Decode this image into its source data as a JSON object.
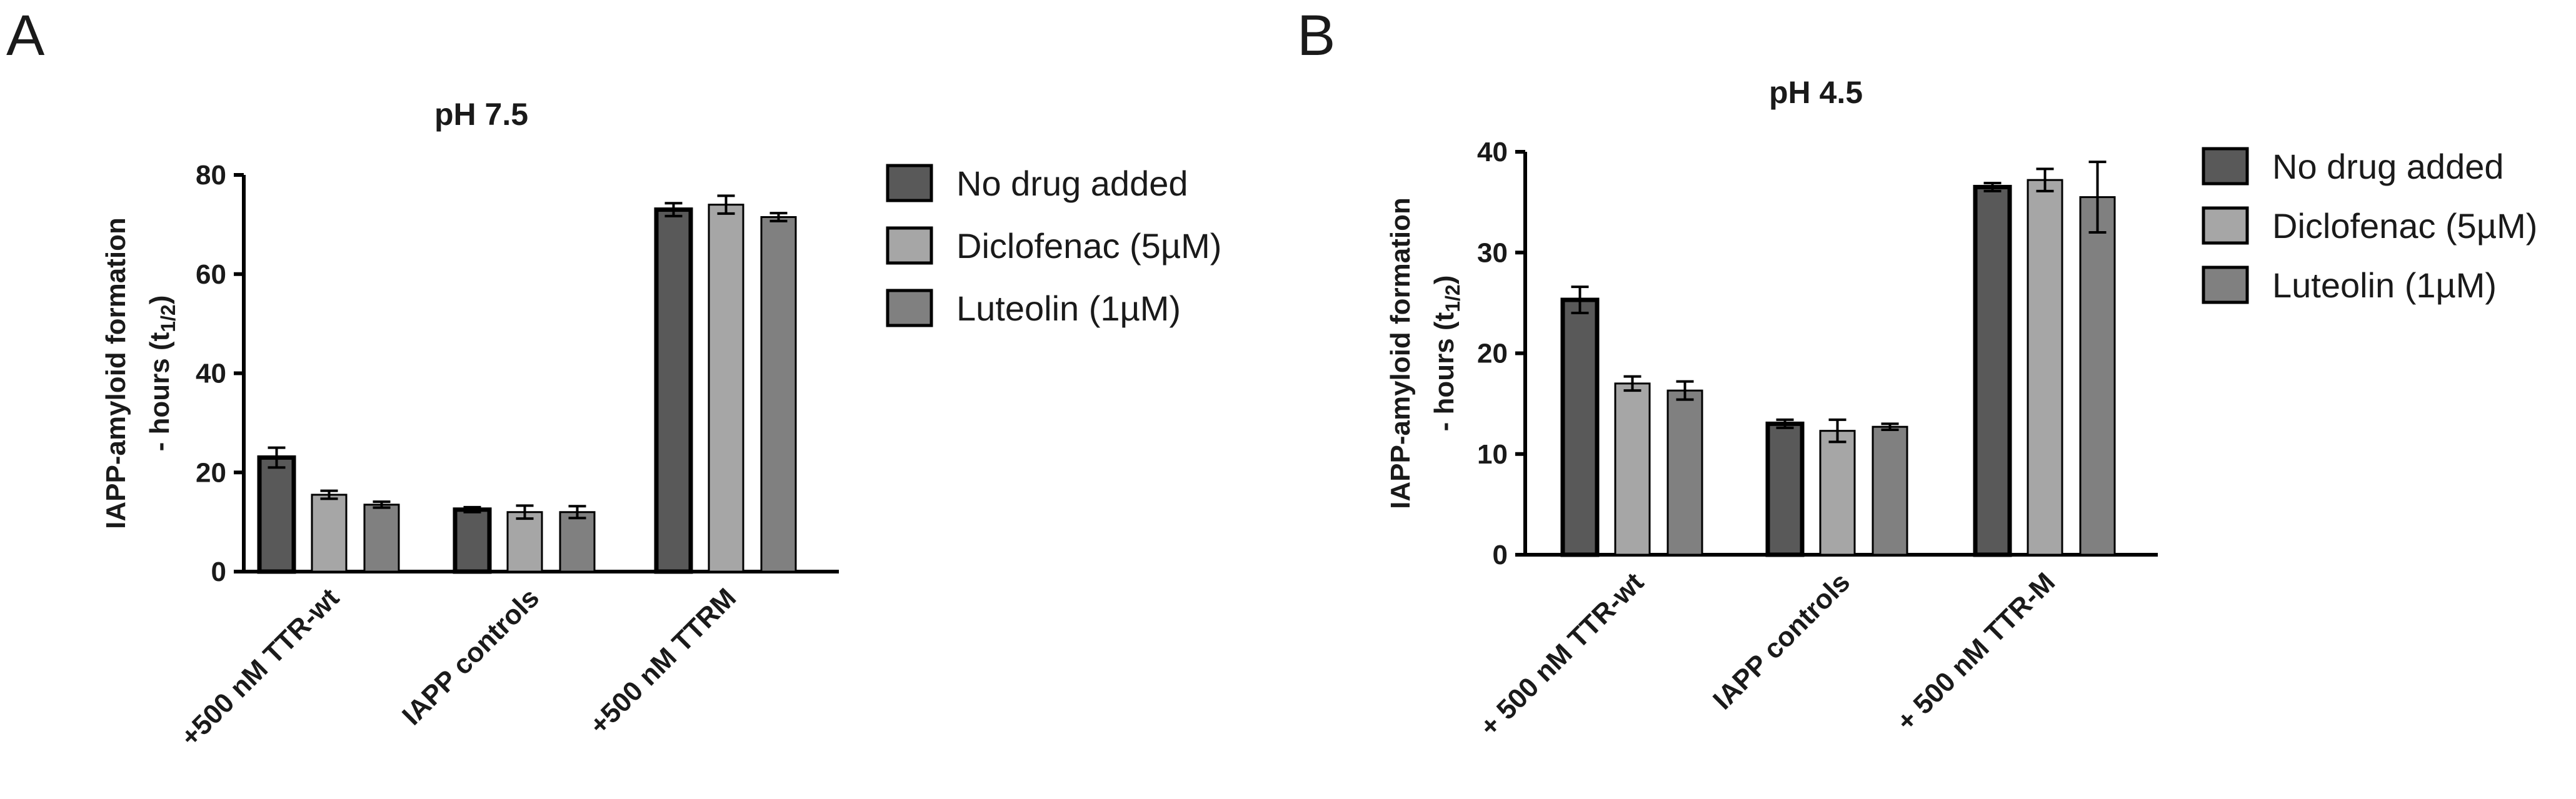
{
  "chart_data": [
    {
      "type": "bar",
      "panel": "A",
      "title": "pH 7.5",
      "ylabel_main": "IAPP-amyloid formation",
      "ylabel_sub": "- hours (t",
      "ylabel_subscript": "1/2",
      "ylabel_close": ")",
      "xlabel": "",
      "ylim": [
        0,
        80
      ],
      "yticks": [
        0,
        20,
        40,
        60,
        80
      ],
      "categories": [
        "+500 nM TTR-wt",
        "IAPP controls",
        "+500 nM TTRM"
      ],
      "series": [
        {
          "name": "No drug added",
          "color": "#595959",
          "values": [
            23,
            12.5,
            73
          ],
          "errors": [
            2,
            0.5,
            1.3
          ]
        },
        {
          "name": "Diclofenac (5µM)",
          "color": "#a6a6a6",
          "values": [
            15.5,
            12,
            74
          ],
          "errors": [
            0.8,
            1.3,
            1.8
          ]
        },
        {
          "name": "Luteolin (1µM)",
          "color": "#808080",
          "values": [
            13.5,
            12,
            71.5
          ],
          "errors": [
            0.6,
            1.2,
            0.8
          ]
        }
      ]
    },
    {
      "type": "bar",
      "panel": "B",
      "title": "pH 4.5",
      "ylabel_main": "IAPP-amyloid formation",
      "ylabel_sub": "- hours (t",
      "ylabel_subscript": "1/2",
      "ylabel_close": ")",
      "xlabel": "",
      "ylim": [
        0,
        40
      ],
      "yticks": [
        0,
        10,
        20,
        30,
        40
      ],
      "categories": [
        "+ 500 nM TTR-wt",
        "IAPP controls",
        "+ 500 nM TTR-M"
      ],
      "series": [
        {
          "name": "No drug added",
          "color": "#595959",
          "values": [
            25.3,
            13,
            36.5
          ],
          "errors": [
            1.3,
            0.4,
            0.4
          ]
        },
        {
          "name": "Diclofenac (5µM)",
          "color": "#a6a6a6",
          "values": [
            17,
            12.3,
            37.2
          ],
          "errors": [
            0.7,
            1.1,
            1.1
          ]
        },
        {
          "name": "Luteolin (1µM)",
          "color": "#808080",
          "values": [
            16.3,
            12.7,
            35.5
          ],
          "errors": [
            0.9,
            0.3,
            3.5
          ]
        }
      ]
    }
  ]
}
